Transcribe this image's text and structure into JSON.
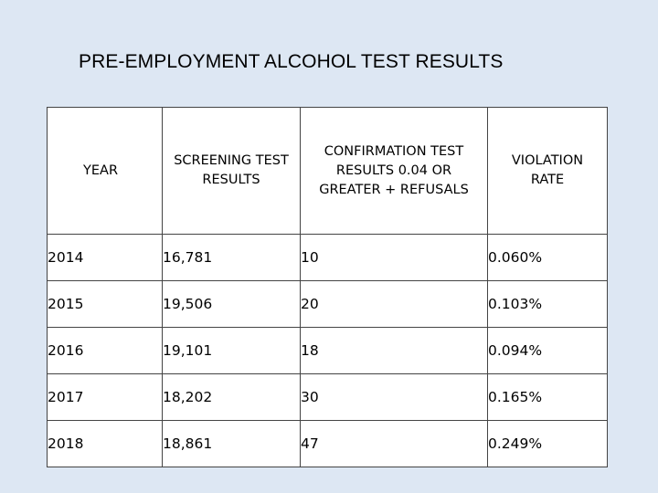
{
  "title": "PRE-EMPLOYMENT ALCOHOL TEST RESULTS",
  "table": {
    "headers": {
      "year": "YEAR",
      "screening": [
        "SCREENING TEST",
        "RESULTS"
      ],
      "confirmation": [
        "CONFIRMATION TEST",
        "RESULTS 0.04 OR",
        "GREATER + REFUSALS"
      ],
      "violation": [
        "VIOLATION",
        "RATE"
      ]
    },
    "rows": [
      {
        "year": "2014",
        "screening": "16,781",
        "confirmation": "10",
        "rate": "0.060%"
      },
      {
        "year": "2015",
        "screening": "19,506",
        "confirmation": "20",
        "rate": "0.103%"
      },
      {
        "year": "2016",
        "screening": "19,101",
        "confirmation": "18",
        "rate": "0.094%"
      },
      {
        "year": "2017",
        "screening": "18,202",
        "confirmation": "30",
        "rate": "0.165%"
      },
      {
        "year": "2018",
        "screening": "18,861",
        "confirmation": "47",
        "rate": "0.249%"
      }
    ]
  }
}
